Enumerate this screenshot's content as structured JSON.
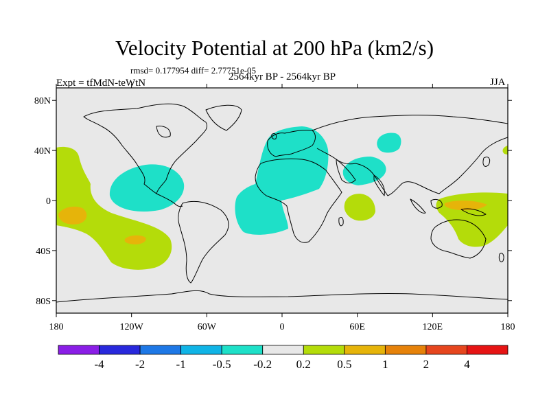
{
  "title": "Velocity Potential at 200 hPa (km2/s)",
  "stats": "rmsd= 0.177954 diff= 2.77751e-05",
  "experiment": "Expt = tfMdN-teWtN",
  "period": "2564kyr BP - 2564kyr BP",
  "season": "JJA",
  "map": {
    "lon_range": [
      -180,
      180
    ],
    "lat_range": [
      -90,
      90
    ],
    "lat_ticks": [
      {
        "value": 80,
        "label": "80N"
      },
      {
        "value": 40,
        "label": "40N"
      },
      {
        "value": 0,
        "label": "0"
      },
      {
        "value": -40,
        "label": "40S"
      },
      {
        "value": -80,
        "label": "80S"
      }
    ],
    "lon_ticks": [
      {
        "value": -180,
        "label": "180"
      },
      {
        "value": -120,
        "label": "120W"
      },
      {
        "value": -60,
        "label": "60W"
      },
      {
        "value": 0,
        "label": "0"
      },
      {
        "value": 60,
        "label": "60E"
      },
      {
        "value": 120,
        "label": "120E"
      },
      {
        "value": 180,
        "label": "180"
      }
    ],
    "background_color": "#e8e8e8"
  },
  "colorbar": {
    "colors": [
      "#8a1ee6",
      "#2828dc",
      "#1e78e6",
      "#10b4e6",
      "#1ee0c8",
      "#e8e8e8",
      "#b4dc0a",
      "#e6b40a",
      "#e6820a",
      "#e6461e",
      "#e61414"
    ],
    "labels": [
      "-4",
      "-2",
      "-1",
      "-0.5",
      "-0.2",
      "0.2",
      "0.5",
      "1",
      "2",
      "4"
    ]
  }
}
